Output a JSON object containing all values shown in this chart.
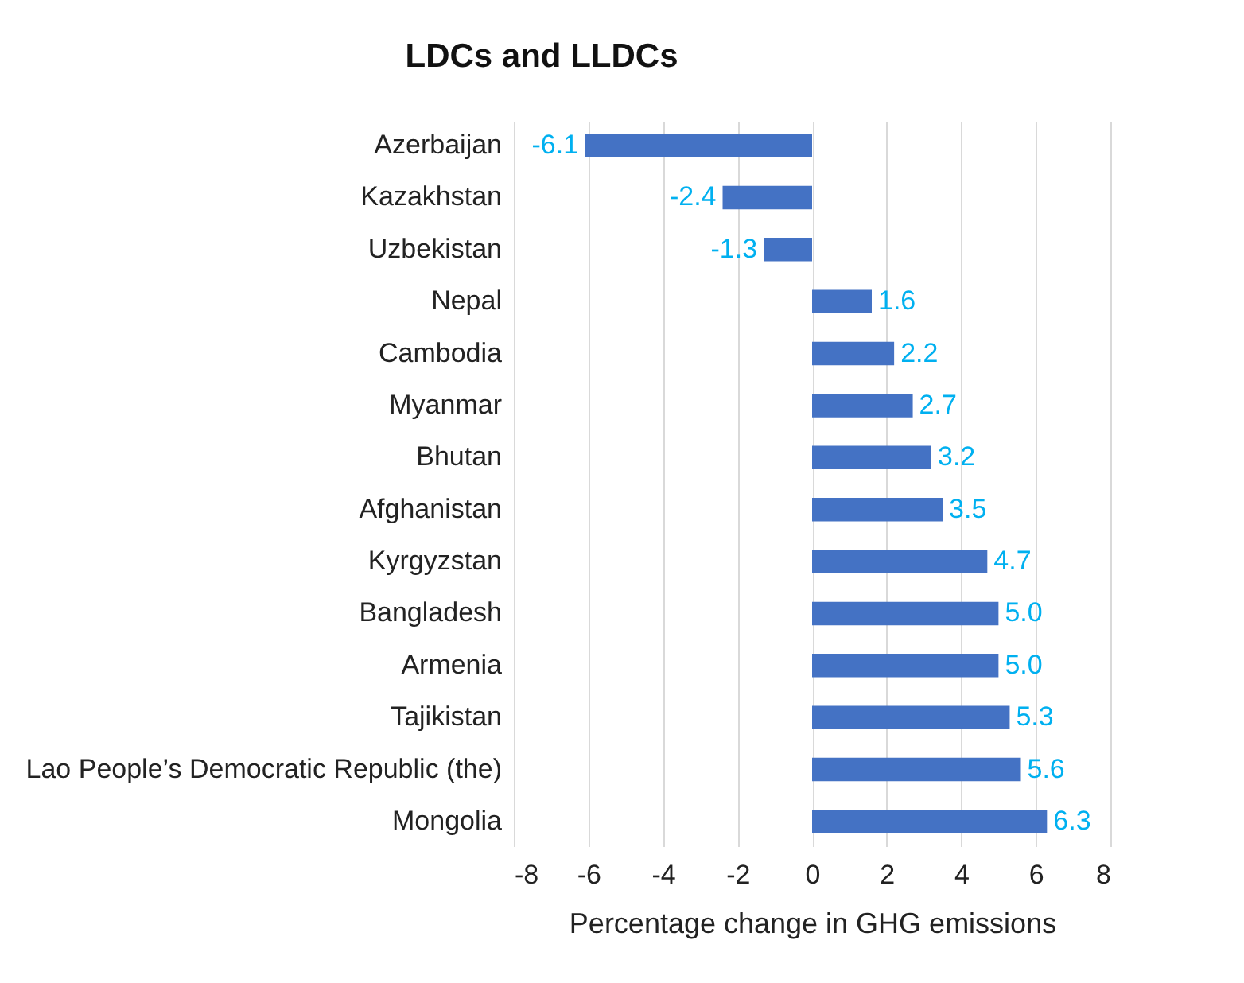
{
  "chart_data": {
    "type": "bar",
    "orientation": "horizontal",
    "title": "LDCs and LLDCs",
    "xlabel": "Percentage change in GHG emissions",
    "categories": [
      "Azerbaijan",
      "Kazakhstan",
      "Uzbekistan",
      "Nepal",
      "Cambodia",
      "Myanmar",
      "Bhutan",
      "Afghanistan",
      "Kyrgyzstan",
      "Bangladesh",
      "Armenia",
      "Tajikistan",
      "Lao People’s Democratic Republic (the)",
      "Mongolia"
    ],
    "values": [
      -6.1,
      -2.4,
      -1.3,
      1.6,
      2.2,
      2.7,
      3.2,
      3.5,
      4.7,
      5.0,
      5.0,
      5.3,
      5.6,
      6.3
    ],
    "value_labels": [
      "-6.1",
      "-2.4",
      "-1.3",
      "1.6",
      "2.2",
      "2.7",
      "3.2",
      "3.5",
      "4.7",
      "5.0",
      "5.0",
      "5.3",
      "5.6",
      "6.3"
    ],
    "color": "#4472c4",
    "xlim": [
      -8,
      8
    ],
    "xticks": [
      -8,
      -6,
      -4,
      -2,
      0,
      2,
      4,
      6,
      8
    ],
    "grid": "x"
  }
}
